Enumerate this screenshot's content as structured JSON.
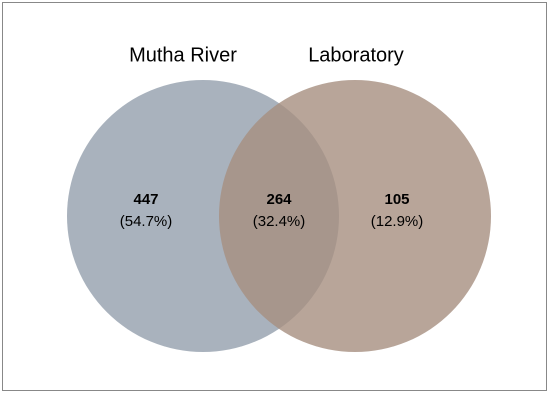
{
  "sets": [
    {
      "name": "Mutha River"
    },
    {
      "name": "Laboratory"
    }
  ],
  "regions": [
    {
      "count": 447,
      "percent": "(54.7%)"
    },
    {
      "count": 264,
      "percent": "(32.4%)"
    },
    {
      "count": 105,
      "percent": "(12.9%)"
    }
  ]
}
